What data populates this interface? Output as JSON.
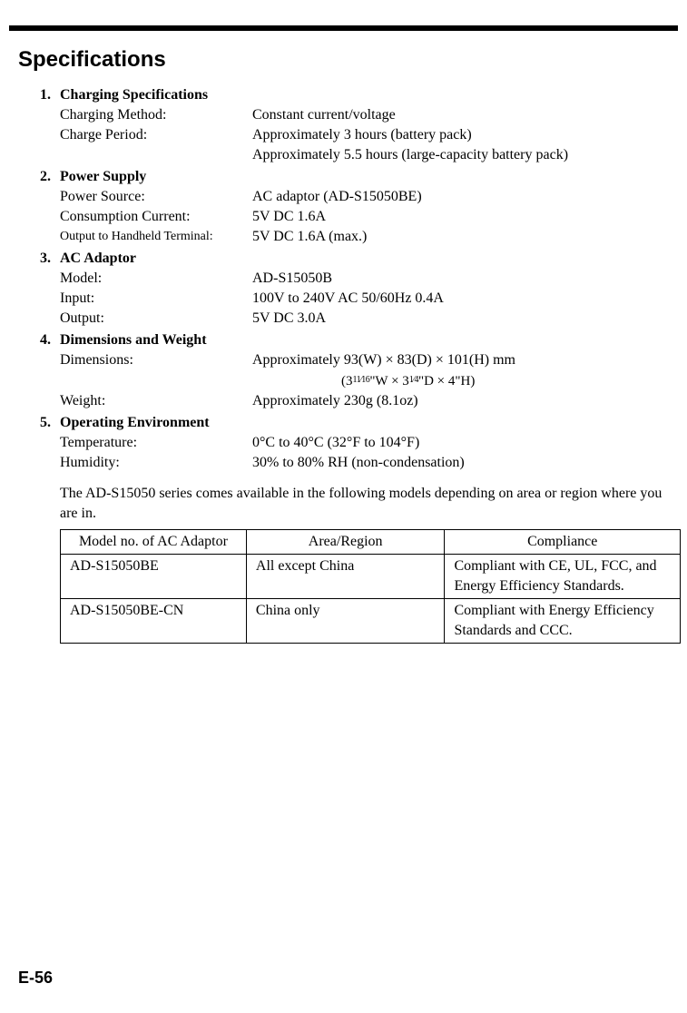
{
  "title": "Specifications",
  "sections": [
    {
      "num": "1.",
      "heading": "Charging Specifications",
      "rows": [
        {
          "label": "Charging Method:",
          "value": "Constant current/voltage"
        },
        {
          "label": "Charge Period:",
          "value": "Approximately 3 hours (battery pack)"
        },
        {
          "label": "",
          "value": "Approximately 5.5 hours (large-capacity battery pack)"
        }
      ]
    },
    {
      "num": "2.",
      "heading": "Power Supply",
      "rows": [
        {
          "label": "Power Source:",
          "value": "AC adaptor (AD-S15050BE)"
        },
        {
          "label": "Consumption Current:",
          "value": "5V DC 1.6A"
        },
        {
          "label": "Output to Handheld Terminal:",
          "value": "5V DC 1.6A (max.)",
          "smallLabel": true
        }
      ]
    },
    {
      "num": "3.",
      "heading": "AC Adaptor",
      "rows": [
        {
          "label": "Model:",
          "value": "AD-S15050B"
        },
        {
          "label": "Input:",
          "value": "100V to 240V AC 50/60Hz 0.4A"
        },
        {
          "label": "Output:",
          "value": "5V DC 3.0A"
        }
      ]
    },
    {
      "num": "4.",
      "heading": "Dimensions and Weight",
      "rows": [
        {
          "label": "Dimensions:",
          "value": "Approximately 93(W) × 83(D) × 101(H) mm"
        }
      ],
      "imperial_prefix": "(3",
      "imperial_frac1": "11⁄16",
      "imperial_mid": "\"W × 3",
      "imperial_frac2": "1⁄4",
      "imperial_suffix": "\"D × 4\"H)",
      "rows2": [
        {
          "label": "Weight:",
          "value": "Approximately 230g (8.1oz)"
        }
      ]
    },
    {
      "num": "5.",
      "heading": "Operating Environment",
      "rows": [
        {
          "label": "Temperature:",
          "value": "0°C to 40°C (32°F to 104°F)"
        },
        {
          "label": "Humidity:",
          "value": "30% to 80% RH (non-condensation)"
        }
      ]
    }
  ],
  "note": "The AD-S15050 series comes available in the following models depending on area or region where you are in.",
  "table": {
    "headers": [
      "Model no. of AC Adaptor",
      "Area/Region",
      "Compliance"
    ],
    "rows": [
      [
        "AD-S15050BE",
        "All except China",
        "Compliant with CE, UL, FCC, and Energy Efficiency Standards."
      ],
      [
        "AD-S15050BE-CN",
        "China only",
        "Compliant with Energy Efficiency Standards and CCC."
      ]
    ]
  },
  "page_number": "E-56",
  "colors": {
    "text": "#000000",
    "background": "#ffffff",
    "bar": "#000000",
    "border": "#000000"
  }
}
